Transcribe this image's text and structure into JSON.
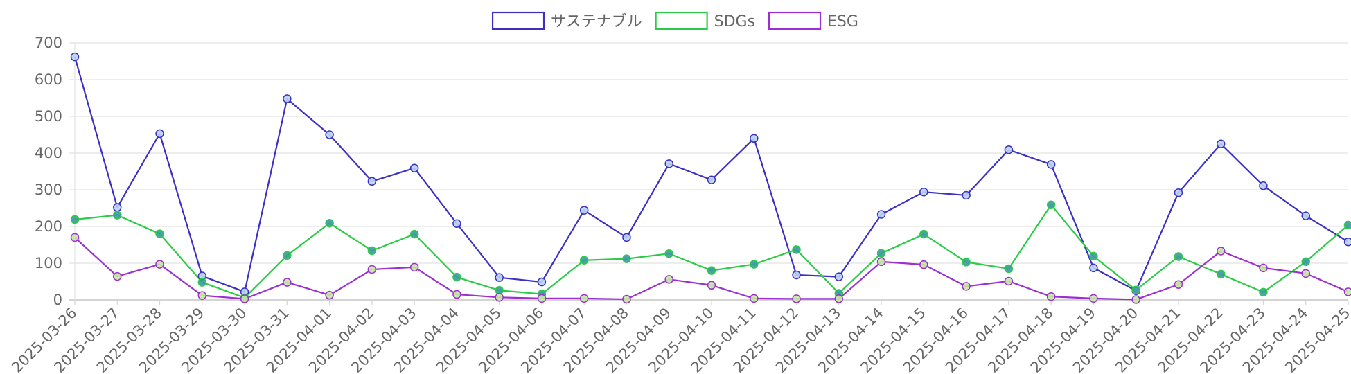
{
  "chart_data": {
    "type": "line",
    "title": "",
    "xlabel": "",
    "ylabel": "",
    "ylim": [
      0,
      700
    ],
    "yticks": [
      0,
      100,
      200,
      300,
      400,
      500,
      600,
      700
    ],
    "grid": true,
    "legend_position": "top-center",
    "categories": [
      "2025-03-26",
      "2025-03-27",
      "2025-03-28",
      "2025-03-29",
      "2025-03-30",
      "2025-03-31",
      "2025-04-01",
      "2025-04-02",
      "2025-04-03",
      "2025-04-04",
      "2025-04-05",
      "2025-04-06",
      "2025-04-07",
      "2025-04-08",
      "2025-04-09",
      "2025-04-10",
      "2025-04-11",
      "2025-04-12",
      "2025-04-13",
      "2025-04-14",
      "2025-04-15",
      "2025-04-16",
      "2025-04-17",
      "2025-04-18",
      "2025-04-19",
      "2025-04-20",
      "2025-04-21",
      "2025-04-22",
      "2025-04-23",
      "2025-04-24",
      "2025-04-25"
    ],
    "series": [
      {
        "name": "サステナブル",
        "color": "#3b2fc4",
        "point_fill": "#b9d3f0",
        "values": [
          662,
          252,
          453,
          65,
          22,
          548,
          450,
          323,
          359,
          208,
          61,
          49,
          244,
          170,
          371,
          327,
          440,
          68,
          63,
          233,
          294,
          285,
          409,
          369,
          87,
          25,
          292,
          425,
          311,
          229,
          158
        ]
      },
      {
        "name": "SDGs",
        "color": "#29cc44",
        "point_fill": "#3a9a9e",
        "values": [
          219,
          231,
          180,
          48,
          6,
          121,
          209,
          134,
          179,
          62,
          26,
          16,
          108,
          112,
          126,
          80,
          97,
          137,
          18,
          127,
          179,
          103,
          85,
          259,
          119,
          27,
          118,
          70,
          21,
          104,
          204
        ]
      },
      {
        "name": "ESG",
        "color": "#9b2fd1",
        "point_fill": "#c6e6a6",
        "values": [
          170,
          64,
          97,
          12,
          3,
          48,
          13,
          83,
          89,
          15,
          7,
          4,
          4,
          2,
          56,
          40,
          4,
          3,
          3,
          104,
          96,
          37,
          51,
          9,
          4,
          1,
          42,
          133,
          87,
          72,
          22
        ]
      }
    ]
  }
}
